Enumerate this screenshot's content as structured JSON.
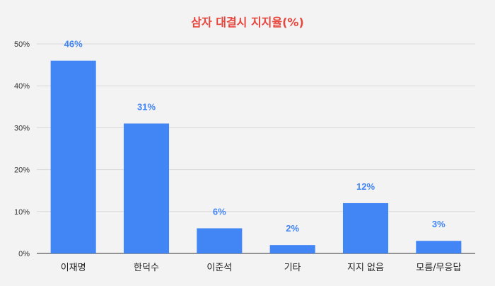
{
  "chart_data": {
    "type": "bar",
    "title": "삼자 대결시 지지율(%)",
    "categories": [
      "이재명",
      "한덕수",
      "이준석",
      "기타",
      "지지 없음",
      "모름/무응답"
    ],
    "values": [
      46,
      31,
      6,
      2,
      12,
      3
    ],
    "value_labels": [
      "46%",
      "31%",
      "6%",
      "2%",
      "12%",
      "3%"
    ],
    "yticks": [
      0,
      10,
      20,
      30,
      40,
      50
    ],
    "ytick_labels": [
      "0%",
      "10%",
      "20%",
      "30%",
      "40%",
      "50%"
    ],
    "ylim": [
      0,
      50
    ],
    "xlabel": "",
    "ylabel": "",
    "grid": true,
    "legend": "none",
    "colors": {
      "bar": "#4285f4",
      "label": "#4285f4",
      "title": "#e8453c",
      "grid": "#d9d9d9",
      "background": "#f3f3f3"
    }
  }
}
